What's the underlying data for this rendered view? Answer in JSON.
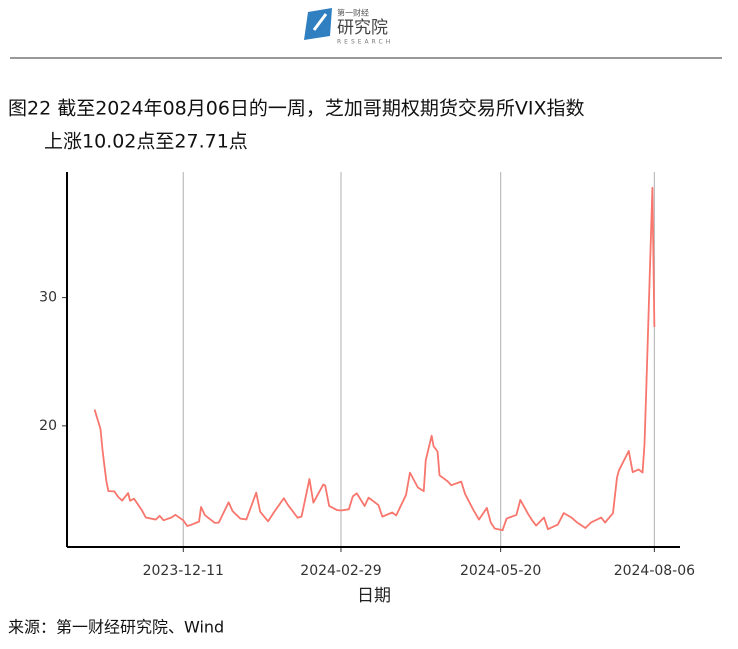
{
  "header": {
    "logo_text": "研究院",
    "logo_small": "第一财经",
    "logo_sub": "RESEARCH"
  },
  "chart_data": {
    "type": "line",
    "title": [
      "图22  截至2024年08月06日的一周，芝加哥期权期货交易所VIX指数",
      "上涨10.02点至27.71点"
    ],
    "x_label": "日期",
    "source": "来源：第一财经研究院、Wind",
    "x": [
      "2023-10-27",
      "2023-10-30",
      "2023-10-31",
      "2023-11-01",
      "2023-11-02",
      "2023-11-03",
      "2023-11-06",
      "2023-11-08",
      "2023-11-10",
      "2023-11-13",
      "2023-11-14",
      "2023-11-16",
      "2023-11-20",
      "2023-11-22",
      "2023-11-27",
      "2023-11-29",
      "2023-12-01",
      "2023-12-05",
      "2023-12-07",
      "2023-12-11",
      "2023-12-13",
      "2023-12-15",
      "2023-12-19",
      "2023-12-20",
      "2023-12-22",
      "2023-12-27",
      "2023-12-29",
      "2024-01-03",
      "2024-01-05",
      "2024-01-09",
      "2024-01-12",
      "2024-01-17",
      "2024-01-19",
      "2024-01-23",
      "2024-01-26",
      "2024-01-31",
      "2024-02-02",
      "2024-02-07",
      "2024-02-09",
      "2024-02-13",
      "2024-02-15",
      "2024-02-20",
      "2024-02-21",
      "2024-02-23",
      "2024-02-27",
      "2024-02-29",
      "2024-03-04",
      "2024-03-06",
      "2024-03-08",
      "2024-03-12",
      "2024-03-14",
      "2024-03-19",
      "2024-03-21",
      "2024-03-26",
      "2024-03-28",
      "2024-04-02",
      "2024-04-04",
      "2024-04-08",
      "2024-04-11",
      "2024-04-12",
      "2024-04-15",
      "2024-04-16",
      "2024-04-18",
      "2024-04-19",
      "2024-04-23",
      "2024-04-25",
      "2024-04-30",
      "2024-05-02",
      "2024-05-06",
      "2024-05-09",
      "2024-05-13",
      "2024-05-15",
      "2024-05-17",
      "2024-05-21",
      "2024-05-23",
      "2024-05-28",
      "2024-05-30",
      "2024-06-03",
      "2024-06-05",
      "2024-06-07",
      "2024-06-11",
      "2024-06-13",
      "2024-06-18",
      "2024-06-21",
      "2024-06-25",
      "2024-06-28",
      "2024-07-02",
      "2024-07-05",
      "2024-07-10",
      "2024-07-12",
      "2024-07-16",
      "2024-07-18",
      "2024-07-19",
      "2024-07-24",
      "2024-07-26",
      "2024-07-29",
      "2024-07-31",
      "2024-08-01",
      "2024-08-02",
      "2024-08-05",
      "2024-08-06"
    ],
    "series": [
      {
        "name": "VIX",
        "color": "#f8766d",
        "values": [
          21.27,
          19.75,
          18.14,
          16.87,
          15.66,
          14.91,
          14.89,
          14.45,
          14.17,
          14.76,
          14.16,
          14.32,
          13.41,
          12.85,
          12.69,
          12.98,
          12.63,
          12.85,
          13.06,
          12.63,
          12.19,
          12.28,
          12.53,
          13.67,
          13.03,
          12.43,
          12.45,
          14.04,
          13.35,
          12.76,
          12.7,
          14.79,
          13.3,
          12.55,
          13.26,
          14.35,
          13.85,
          12.83,
          12.93,
          15.85,
          14.01,
          15.42,
          15.34,
          13.75,
          13.43,
          13.4,
          13.49,
          14.5,
          14.74,
          13.75,
          14.4,
          13.82,
          12.92,
          13.24,
          13.01,
          14.61,
          16.35,
          15.19,
          14.91,
          17.31,
          19.23,
          18.4,
          18.0,
          16.14,
          15.69,
          15.37,
          15.65,
          14.68,
          13.49,
          12.69,
          13.6,
          12.45,
          11.99,
          11.86,
          12.77,
          13.05,
          14.22,
          13.11,
          12.63,
          12.22,
          12.85,
          11.94,
          12.3,
          13.2,
          12.84,
          12.44,
          12.03,
          12.48,
          12.85,
          12.46,
          13.19,
          15.93,
          16.52,
          18.04,
          16.39,
          16.6,
          16.36,
          18.59,
          23.39,
          38.57,
          27.71
        ]
      }
    ],
    "xlim": [
      "2023-10-13",
      "2024-08-19"
    ],
    "xticks": [
      "2023-12-11",
      "2024-02-29",
      "2024-05-20",
      "2024-08-06"
    ],
    "ylim": [
      10.55,
      39.8
    ],
    "yticks": [
      20,
      30
    ],
    "grid": "x"
  }
}
